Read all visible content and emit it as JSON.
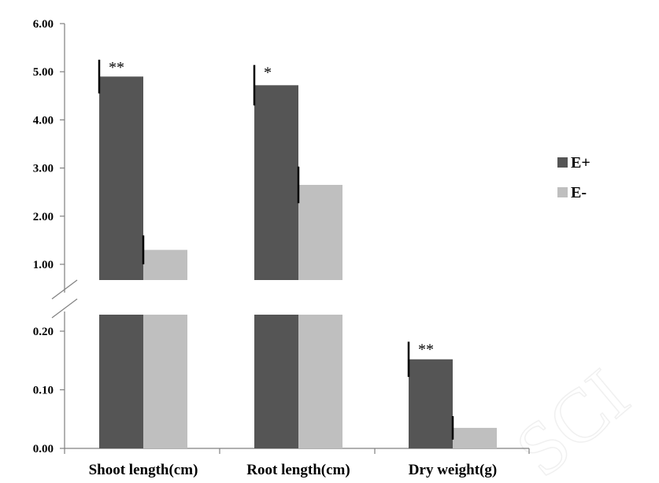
{
  "chart_data": {
    "type": "bar",
    "broken_axis": true,
    "categories": [
      "Shoot length(cm)",
      "Root length(cm)",
      "Dry weight(g)"
    ],
    "series": [
      {
        "name": "E+",
        "color": "#555555",
        "values": [
          4.9,
          4.72,
          0.152
        ],
        "errors": [
          0.35,
          0.42,
          0.03
        ],
        "significance": [
          "**",
          "*",
          "**"
        ]
      },
      {
        "name": "E-",
        "color": "#bfbfbf",
        "values": [
          1.3,
          2.65,
          0.035
        ],
        "errors": [
          0.3,
          0.38,
          0.02
        ],
        "significance": [
          "",
          "",
          ""
        ]
      }
    ],
    "upper_segment": {
      "ylim": [
        0.7,
        6.0
      ],
      "ticks": [
        "1.00",
        "2.00",
        "3.00",
        "4.00",
        "5.00",
        "6.00"
      ],
      "tick_values": [
        1,
        2,
        3,
        4,
        5,
        6
      ]
    },
    "lower_segment": {
      "ylim": [
        0.0,
        0.225
      ],
      "ticks": [
        "0.00",
        "0.10",
        "0.20"
      ],
      "tick_values": [
        0,
        0.1,
        0.2
      ]
    },
    "legend_position": "right",
    "grid": false
  }
}
